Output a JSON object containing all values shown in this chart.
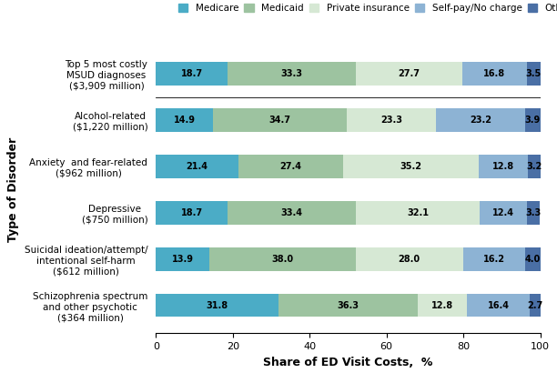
{
  "categories": [
    "Schizophrenia spectrum\nand other psychotic\n($364 million)",
    "Suicidal ideation/attempt/\nintentional self-harm\n($612 million)",
    "Depressive\n($750 million)",
    "Anxiety  and fear-related\n($962 million)",
    "Alcohol-related\n($1,220 million)",
    "Top 5 most costly\nMSUD diagnoses\n($3,909 million)"
  ],
  "series": {
    "Medicare": [
      31.8,
      13.9,
      18.7,
      21.4,
      14.9,
      18.7
    ],
    "Medicaid": [
      36.3,
      38.0,
      33.4,
      27.4,
      34.7,
      33.3
    ],
    "Private insurance": [
      12.8,
      28.0,
      32.1,
      35.2,
      23.3,
      27.7
    ],
    "Self-pay/No charge": [
      16.4,
      16.2,
      12.4,
      12.8,
      23.2,
      16.8
    ],
    "Other": [
      2.7,
      4.0,
      3.3,
      3.2,
      3.9,
      3.5
    ]
  },
  "colors": {
    "Medicare": "#4bacc6",
    "Medicaid": "#9dc3a0",
    "Private insurance": "#d6e8d4",
    "Self-pay/No charge": "#8db3d4",
    "Other": "#4a6fa5"
  },
  "xlabel": "Share of ED Visit Costs,  %",
  "ylabel": "Type of Disorder",
  "xlim": [
    0,
    100
  ],
  "xticks": [
    0,
    20,
    40,
    60,
    80,
    100
  ],
  "bar_height": 0.5,
  "legend_order": [
    "Medicare",
    "Medicaid",
    "Private insurance",
    "Self-pay/No charge",
    "Other"
  ],
  "figsize": [
    6.12,
    4.21
  ],
  "dpi": 100
}
